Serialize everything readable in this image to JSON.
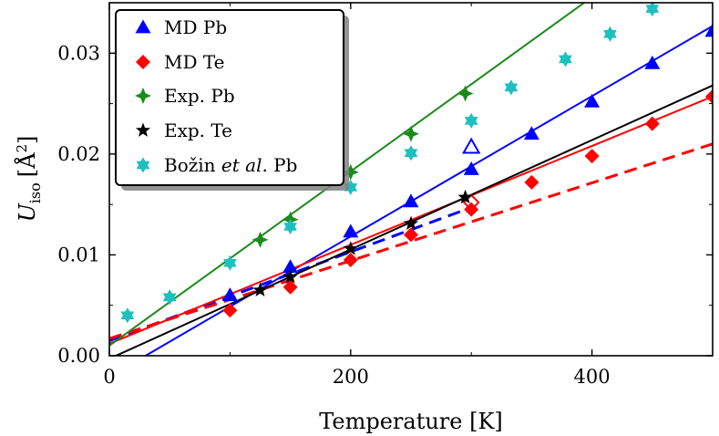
{
  "chart_data": {
    "type": "scatter",
    "title": "",
    "xlabel": "Temperature [K]",
    "ylabel_main": "U",
    "ylabel_sub": "iso",
    "ylabel_unit_open": "[",
    "ylabel_unit_symbol": "Å",
    "ylabel_unit_exp": "2",
    "ylabel_unit_close": "]",
    "xlim": [
      0,
      500
    ],
    "ylim": [
      0,
      0.035
    ],
    "xticks": [
      0,
      200,
      400
    ],
    "xtick_labels": [
      "0",
      "200",
      "400"
    ],
    "yticks": [
      0,
      0.01,
      0.02,
      0.03
    ],
    "ytick_labels": [
      "0.00",
      "0.01",
      "0.02",
      "0.03"
    ],
    "legend_position": "top-left",
    "series": [
      {
        "name": "MD Pb",
        "color": "#0000ff",
        "marker": "triangle",
        "points": [
          [
            100,
            0.006
          ],
          [
            150,
            0.0088
          ],
          [
            200,
            0.0123
          ],
          [
            250,
            0.0153
          ],
          [
            300,
            0.0185
          ],
          [
            350,
            0.022
          ],
          [
            400,
            0.0252
          ],
          [
            450,
            0.029
          ],
          [
            500,
            0.0322
          ]
        ],
        "open_points": [
          [
            300,
            0.0207
          ]
        ],
        "fit": [
          [
            30,
            0.0
          ],
          [
            500,
            0.0327
          ]
        ],
        "dashed": [
          [
            0,
            0.0015
          ],
          [
            300,
            0.0147
          ]
        ]
      },
      {
        "name": "MD Te",
        "color": "#ff0000",
        "marker": "diamond",
        "points": [
          [
            100,
            0.0045
          ],
          [
            150,
            0.0068
          ],
          [
            200,
            0.0095
          ],
          [
            250,
            0.012
          ],
          [
            300,
            0.0145
          ],
          [
            350,
            0.0172
          ],
          [
            400,
            0.0198
          ],
          [
            450,
            0.023
          ],
          [
            500,
            0.0257
          ]
        ],
        "open_points": [
          [
            300,
            0.0152
          ]
        ],
        "fit": [
          [
            0,
            0.0012
          ],
          [
            500,
            0.0257
          ]
        ],
        "dashed": [
          [
            0,
            0.0017
          ],
          [
            500,
            0.021
          ]
        ]
      },
      {
        "name": "Exp. Pb",
        "color": "#1a8c1a",
        "marker": "plus",
        "points": [
          [
            125,
            0.0115
          ],
          [
            150,
            0.0135
          ],
          [
            200,
            0.0182
          ],
          [
            250,
            0.022
          ],
          [
            295,
            0.026
          ]
        ],
        "fit": [
          [
            0,
            0.001
          ],
          [
            500,
            0.0442
          ]
        ]
      },
      {
        "name": "Exp. Te",
        "color": "#000000",
        "marker": "star",
        "points": [
          [
            125,
            0.0065
          ],
          [
            150,
            0.0078
          ],
          [
            200,
            0.0106
          ],
          [
            250,
            0.0131
          ],
          [
            295,
            0.0157
          ]
        ],
        "fit": [
          [
            0,
            -0.0003
          ],
          [
            500,
            0.0268
          ]
        ]
      },
      {
        "name": "Božin",
        "name_suffix": "et al.",
        "name_tail": "Pb",
        "color": "#1fbfbf",
        "marker": "hexstar",
        "points": [
          [
            15,
            0.004
          ],
          [
            50,
            0.0058
          ],
          [
            100,
            0.0092
          ],
          [
            150,
            0.0128
          ],
          [
            200,
            0.0167
          ],
          [
            250,
            0.0201
          ],
          [
            300,
            0.0233
          ],
          [
            333,
            0.0266
          ],
          [
            378,
            0.0294
          ],
          [
            415,
            0.0319
          ],
          [
            450,
            0.0344
          ]
        ]
      }
    ]
  }
}
